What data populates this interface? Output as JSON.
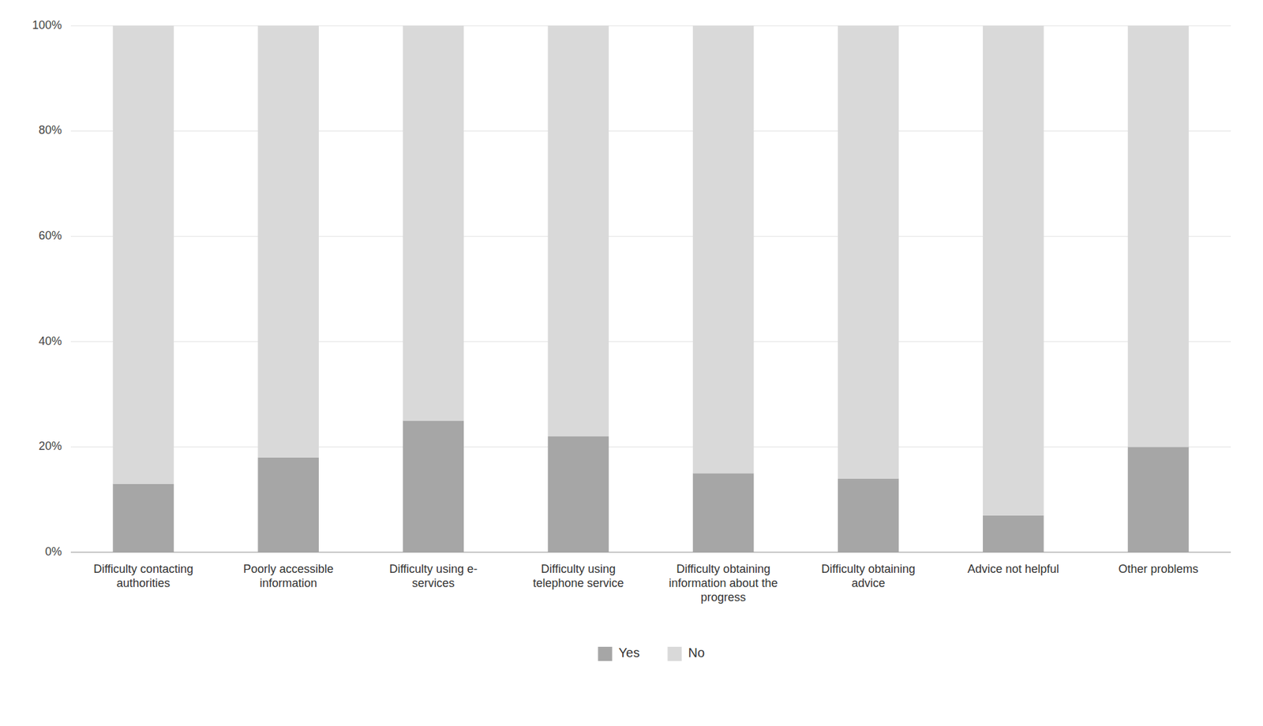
{
  "chart_data": {
    "type": "bar",
    "stacked": true,
    "categories": [
      "Difficulty contacting\nauthorities",
      "Poorly accessible\ninformation",
      "Difficulty using e-\nservices",
      "Difficulty using\ntelephone service",
      "Difficulty obtaining\ninformation about the\nprogress",
      "Difficulty obtaining\nadvice",
      "Advice not helpful",
      "Other problems"
    ],
    "series": [
      {
        "name": "Yes",
        "color": "#a6a6a6",
        "values": [
          13,
          18,
          25,
          22,
          15,
          14,
          7,
          20
        ]
      },
      {
        "name": "No",
        "color": "#d9d9d9",
        "values": [
          87,
          82,
          75,
          78,
          85,
          86,
          93,
          80
        ]
      }
    ],
    "ylim": [
      0,
      100
    ],
    "yticks": [
      {
        "value": 0,
        "label": "0%"
      },
      {
        "value": 20,
        "label": "20%"
      },
      {
        "value": 40,
        "label": "40%"
      },
      {
        "value": 60,
        "label": "60%"
      },
      {
        "value": 80,
        "label": "80%"
      },
      {
        "value": 100,
        "label": "100%"
      }
    ],
    "grid": true,
    "legend": "bottom"
  }
}
